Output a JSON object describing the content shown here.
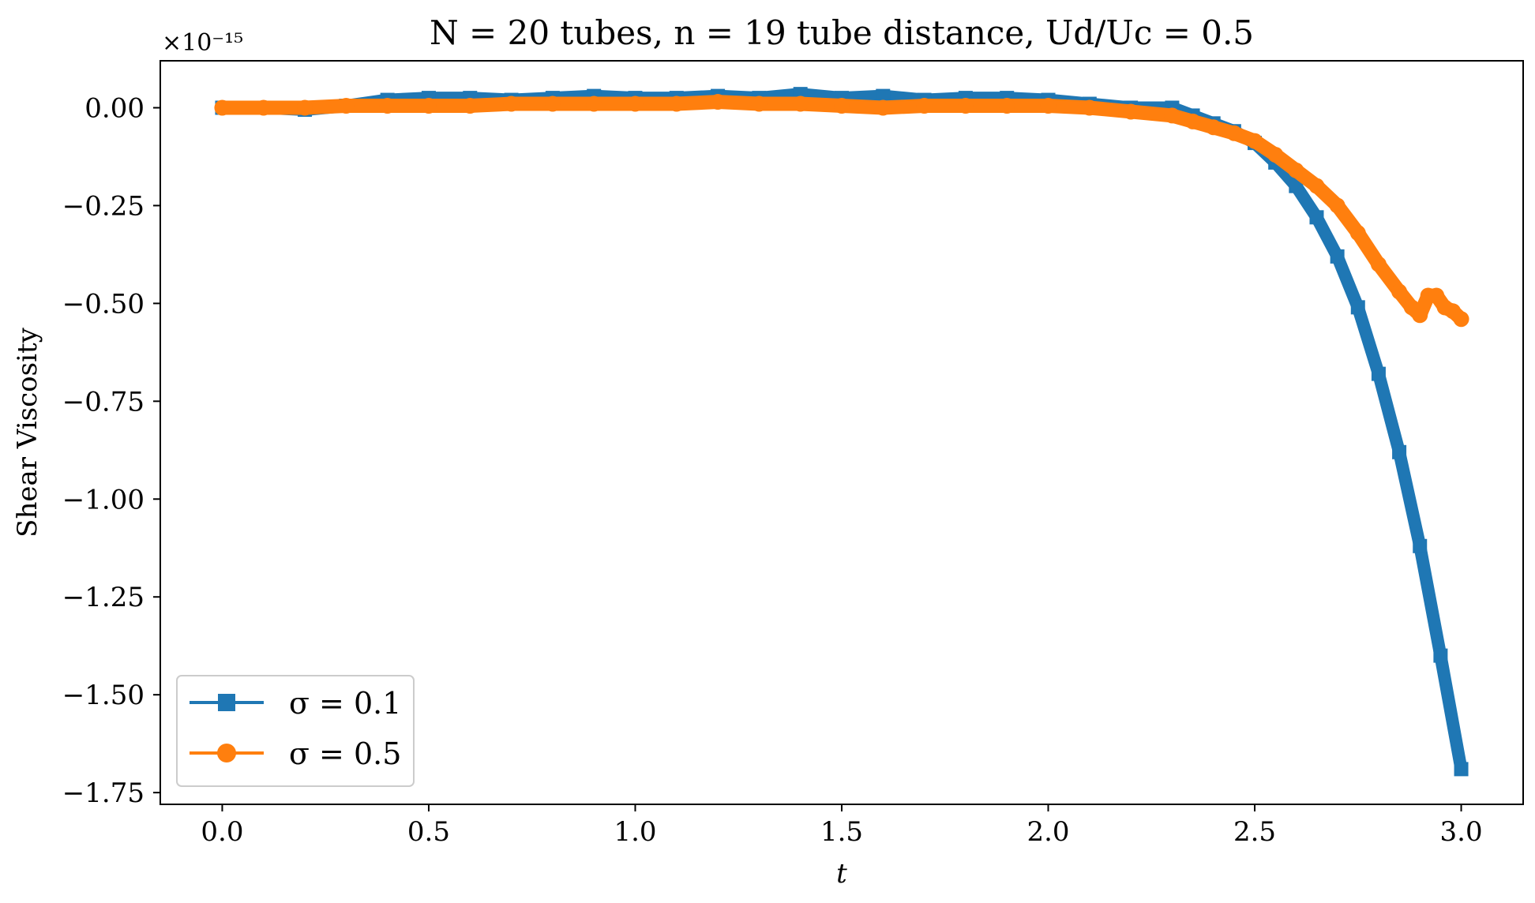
{
  "chart_data": {
    "type": "line",
    "title": "N = 20 tubes, n = 19 tube distance, Ud/Uc = 0.5",
    "xlabel": "t",
    "ylabel": "Shear Viscosity",
    "y_offset_label": "×10⁻¹⁵",
    "xlim": [
      -0.15,
      3.15
    ],
    "ylim": [
      -1.78,
      0.12
    ],
    "x_ticks": [
      0.0,
      0.5,
      1.0,
      1.5,
      2.0,
      2.5,
      3.0
    ],
    "x_tick_labels": [
      "0.0",
      "0.5",
      "1.0",
      "1.5",
      "2.0",
      "2.5",
      "3.0"
    ],
    "y_ticks": [
      0.0,
      -0.25,
      -0.5,
      -0.75,
      -1.0,
      -1.25,
      -1.5,
      -1.75
    ],
    "y_tick_labels": [
      "0.00",
      "−0.25",
      "−0.50",
      "−0.75",
      "−1.00",
      "−1.25",
      "−1.50",
      "−1.75"
    ],
    "grid": false,
    "legend_position": "lower-left",
    "series": [
      {
        "name": "σ = 0.1",
        "color": "#1f77b4",
        "marker": "square",
        "x": [
          0.0,
          0.1,
          0.2,
          0.3,
          0.4,
          0.5,
          0.6,
          0.7,
          0.8,
          0.9,
          1.0,
          1.1,
          1.2,
          1.3,
          1.4,
          1.5,
          1.6,
          1.7,
          1.8,
          1.9,
          2.0,
          2.1,
          2.2,
          2.3,
          2.35,
          2.4,
          2.45,
          2.5,
          2.55,
          2.6,
          2.65,
          2.7,
          2.75,
          2.8,
          2.85,
          2.9,
          2.95,
          3.0
        ],
        "values": [
          0.0,
          0.0,
          -0.005,
          0.005,
          0.02,
          0.025,
          0.025,
          0.02,
          0.025,
          0.03,
          0.025,
          0.025,
          0.03,
          0.025,
          0.035,
          0.025,
          0.03,
          0.02,
          0.025,
          0.025,
          0.02,
          0.01,
          0.0,
          0.0,
          -0.02,
          -0.04,
          -0.06,
          -0.09,
          -0.14,
          -0.2,
          -0.28,
          -0.38,
          -0.51,
          -0.68,
          -0.88,
          -1.12,
          -1.4,
          -1.69
        ]
      },
      {
        "name": "σ = 0.5",
        "color": "#ff7f0e",
        "marker": "circle",
        "x": [
          0.0,
          0.1,
          0.2,
          0.3,
          0.4,
          0.5,
          0.6,
          0.7,
          0.8,
          0.9,
          1.0,
          1.1,
          1.2,
          1.3,
          1.4,
          1.5,
          1.6,
          1.7,
          1.8,
          1.9,
          2.0,
          2.1,
          2.2,
          2.3,
          2.35,
          2.4,
          2.45,
          2.5,
          2.55,
          2.6,
          2.65,
          2.7,
          2.75,
          2.8,
          2.85,
          2.88,
          2.9,
          2.92,
          2.94,
          2.96,
          2.98,
          3.0
        ],
        "values": [
          0.0,
          0.0,
          0.0,
          0.005,
          0.005,
          0.005,
          0.005,
          0.01,
          0.01,
          0.01,
          0.01,
          0.01,
          0.015,
          0.01,
          0.01,
          0.005,
          0.0,
          0.005,
          0.005,
          0.005,
          0.005,
          0.0,
          -0.01,
          -0.02,
          -0.035,
          -0.05,
          -0.065,
          -0.085,
          -0.12,
          -0.16,
          -0.2,
          -0.25,
          -0.32,
          -0.4,
          -0.47,
          -0.51,
          -0.53,
          -0.48,
          -0.48,
          -0.51,
          -0.52,
          -0.54
        ]
      }
    ]
  }
}
